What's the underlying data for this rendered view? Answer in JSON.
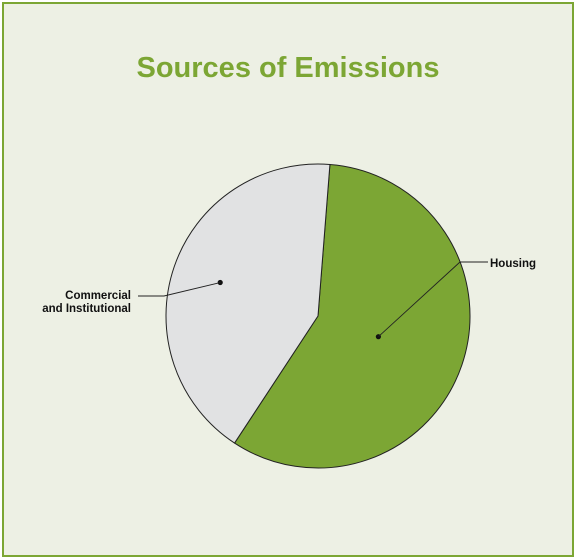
{
  "colors": {
    "accent": "#7ca634",
    "background": "#edf0e4",
    "housing": "#7ca634",
    "commercial": "#e1e2e3",
    "outline": "#222222"
  },
  "chart_data": {
    "type": "pie",
    "title": "Sources of Emissions",
    "slices": [
      {
        "label": "Housing",
        "value": 58,
        "color": "#7ca634"
      },
      {
        "label": "Commercial and Institutional",
        "value": 42,
        "color": "#e1e2e3"
      }
    ]
  }
}
